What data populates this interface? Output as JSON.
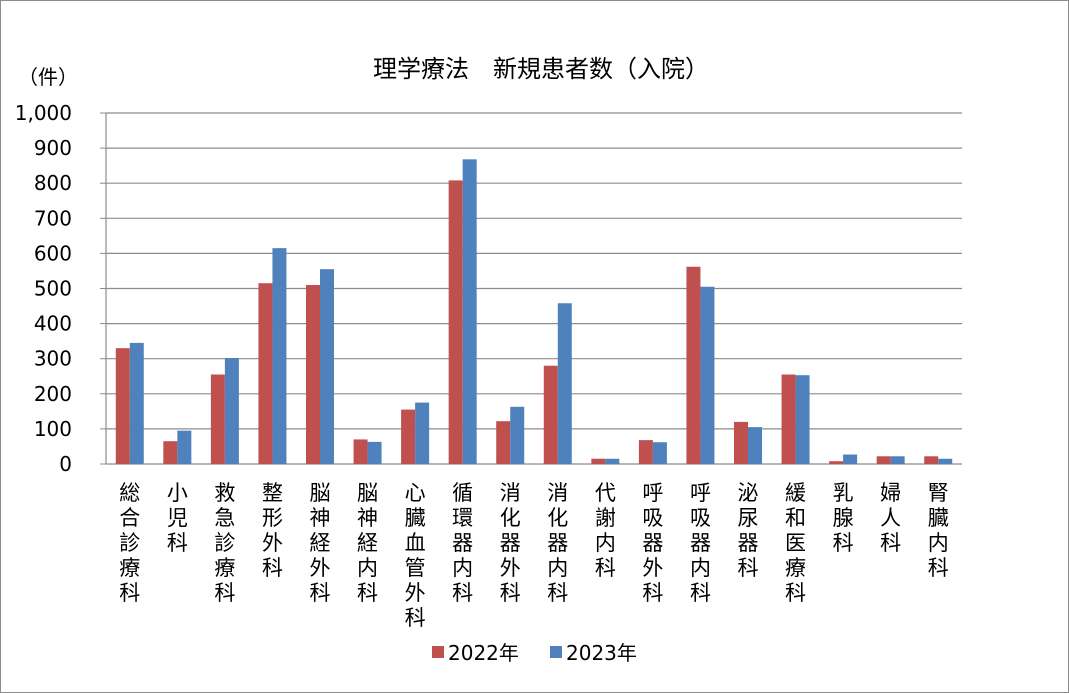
{
  "chart_data": {
    "type": "bar",
    "title": "理学療法　新規患者数（入院）",
    "ylabel": "（件）",
    "ylim": [
      0,
      1000
    ],
    "yticks": [
      "0",
      "100",
      "200",
      "300",
      "400",
      "500",
      "600",
      "700",
      "800",
      "900",
      "1,000"
    ],
    "grid": true,
    "legend_position": "bottom",
    "categories": [
      "総合診療科",
      "小児科",
      "救急診療科",
      "整形外科",
      "脳神経外科",
      "脳神経内科",
      "心臓血管外科",
      "循環器内科",
      "消化器外科",
      "消化器内科",
      "代謝内科",
      "呼吸器外科",
      "呼吸器内科",
      "泌尿器科",
      "緩和医療科",
      "乳腺科",
      "婦人科",
      "腎臓内科"
    ],
    "series": [
      {
        "name": "2022年",
        "color": "#c0504d",
        "values": [
          330,
          65,
          255,
          515,
          510,
          70,
          155,
          808,
          122,
          280,
          15,
          68,
          562,
          120,
          255,
          8,
          22,
          22
        ]
      },
      {
        "name": "2023年",
        "color": "#4f81bd",
        "values": [
          345,
          95,
          302,
          615,
          555,
          63,
          175,
          868,
          163,
          458,
          15,
          62,
          505,
          105,
          253,
          27,
          22,
          15
        ]
      }
    ]
  }
}
